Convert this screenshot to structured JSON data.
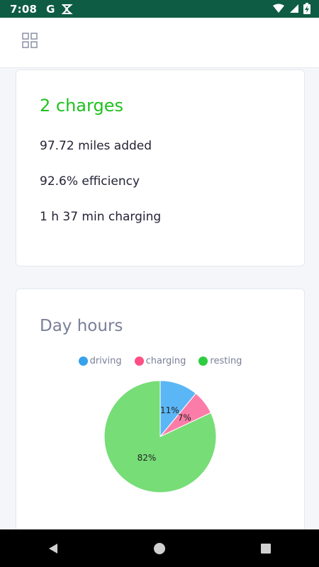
{
  "status_bar": {
    "time": "7:08",
    "g_label": "G"
  },
  "summary": {
    "charges": "2 charges",
    "miles_added": "97.72 miles added",
    "efficiency": "92.6% efficiency",
    "charging_time": "1 h 37 min charging"
  },
  "day_hours": {
    "title": "Day hours",
    "legend": [
      {
        "label": "driving",
        "color": "#36a2eb"
      },
      {
        "label": "charging",
        "color": "#ff4f84"
      },
      {
        "label": "resting",
        "color": "#2ecc40"
      }
    ]
  },
  "chart_data": {
    "type": "pie",
    "title": "Day hours",
    "categories": [
      "driving",
      "charging",
      "resting"
    ],
    "values": [
      11,
      7,
      82
    ],
    "value_labels": [
      "11%",
      "7%",
      "82%"
    ],
    "colors": [
      "#5bb6f6",
      "#fb7ca8",
      "#77dd77"
    ],
    "legend_placement": "top"
  }
}
